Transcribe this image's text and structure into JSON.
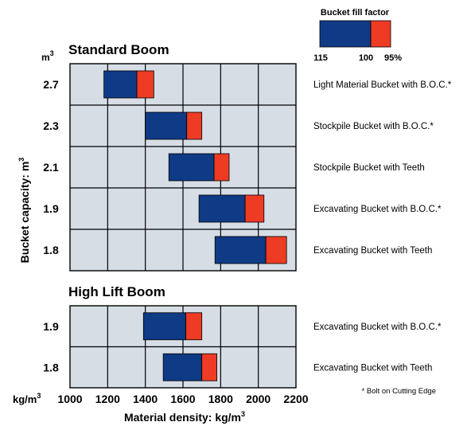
{
  "chart_data": {
    "type": "bar",
    "subtype": "floating-range-bar",
    "x_unit_label": "kg/m",
    "x_unit_sup": "3",
    "xlabel": "Material density: kg/m",
    "xlabel_sup": "3",
    "ylabel": "Bucket capacity: m",
    "ylabel_sup": "3",
    "y_unit_label": "m",
    "y_unit_sup": "3",
    "xlim": [
      1000,
      2200
    ],
    "xticks": [
      "1000",
      "1200",
      "1400",
      "1600",
      "1800",
      "2000",
      "2200"
    ],
    "grid": true,
    "colors": {
      "fill_115_100": "#0f3a85",
      "fill_100_95": "#ee3b24",
      "panel_bg": "#d6dde5",
      "grid": "#000000"
    },
    "legend": {
      "title": "Bucket fill factor",
      "labels": [
        "115",
        "100",
        "95%"
      ],
      "placement": "top-right"
    },
    "footnote": "* Bolt on Cutting Edge",
    "groups": [
      {
        "title": "Standard Boom",
        "rows": [
          {
            "capacity": "2.7",
            "bucket": "Light Material Bucket with B.O.C.*",
            "x115": 1180,
            "x100": 1355,
            "x95": 1445
          },
          {
            "capacity": "2.3",
            "bucket": "Stockpile Bucket with B.O.C.*",
            "x115": 1400,
            "x100": 1620,
            "x95": 1700
          },
          {
            "capacity": "2.1",
            "bucket": "Stockpile Bucket with Teeth",
            "x115": 1525,
            "x100": 1765,
            "x95": 1845
          },
          {
            "capacity": "1.9",
            "bucket": "Excavating Bucket with B.O.C.*",
            "x115": 1685,
            "x100": 1930,
            "x95": 2030
          },
          {
            "capacity": "1.8",
            "bucket": "Excavating Bucket with Teeth",
            "x115": 1770,
            "x100": 2040,
            "x95": 2150
          }
        ]
      },
      {
        "title": "High Lift Boom",
        "rows": [
          {
            "capacity": "1.9",
            "bucket": "Excavating Bucket with B.O.C.*",
            "x115": 1390,
            "x100": 1615,
            "x95": 1700
          },
          {
            "capacity": "1.8",
            "bucket": "Excavating Bucket with Teeth",
            "x115": 1495,
            "x100": 1700,
            "x95": 1780
          }
        ]
      }
    ]
  }
}
